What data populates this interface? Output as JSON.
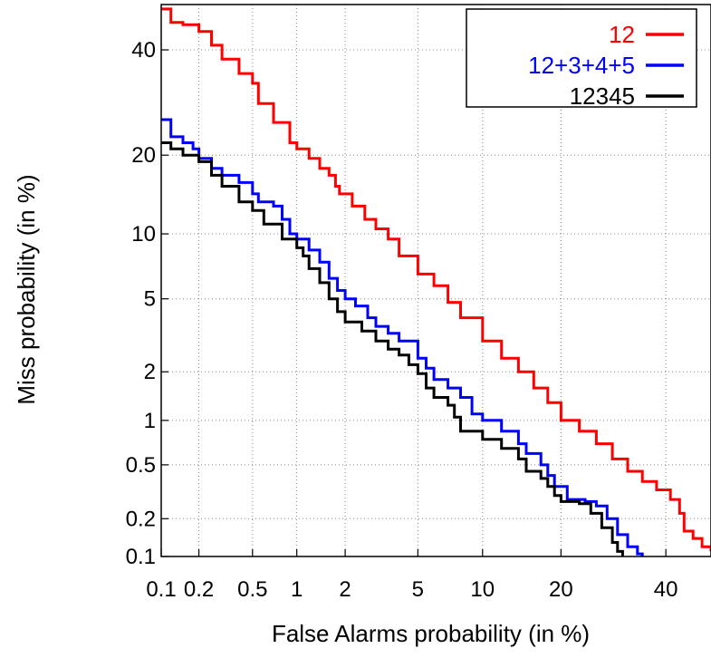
{
  "chart_data": {
    "type": "line",
    "title": "",
    "xlabel": "False Alarms probability (in %)",
    "ylabel": "Miss probability (in %)",
    "x_scale": "probit",
    "y_scale": "probit",
    "xlim": [
      0.1,
      50
    ],
    "ylim": [
      0.1,
      50
    ],
    "x_ticks": [
      0.1,
      0.2,
      0.5,
      1,
      2,
      5,
      10,
      20,
      40
    ],
    "x_tick_labels": [
      "0.1",
      "0.2",
      "0.5",
      "1",
      "2",
      "5",
      "10",
      "20",
      "40"
    ],
    "y_ticks": [
      0.1,
      0.2,
      0.5,
      1,
      2,
      5,
      10,
      20,
      40
    ],
    "y_tick_labels": [
      "0.1",
      "0.2",
      "0.5",
      "1",
      "2",
      "5",
      "10",
      "20",
      "40"
    ],
    "grid": true,
    "legend_position": "top-right",
    "series": [
      {
        "name": "12",
        "color": "#ff0000",
        "points": [
          [
            0.1,
            49.0
          ],
          [
            0.12,
            46.0
          ],
          [
            0.15,
            45.5
          ],
          [
            0.2,
            44.0
          ],
          [
            0.25,
            41.0
          ],
          [
            0.3,
            38.0
          ],
          [
            0.4,
            35.0
          ],
          [
            0.5,
            33.0
          ],
          [
            0.55,
            29.0
          ],
          [
            0.7,
            25.5
          ],
          [
            0.9,
            22.0
          ],
          [
            1.0,
            21.0
          ],
          [
            1.2,
            19.5
          ],
          [
            1.4,
            18.0
          ],
          [
            1.6,
            17.0
          ],
          [
            1.75,
            15.5
          ],
          [
            1.85,
            14.5
          ],
          [
            2.2,
            13.0
          ],
          [
            2.6,
            11.5
          ],
          [
            3.0,
            10.5
          ],
          [
            3.5,
            9.5
          ],
          [
            4.0,
            8.0
          ],
          [
            5.0,
            6.6
          ],
          [
            6.0,
            5.8
          ],
          [
            7.0,
            4.8
          ],
          [
            8.0,
            4.0
          ],
          [
            10.0,
            3.0
          ],
          [
            12.0,
            2.4
          ],
          [
            14.0,
            2.0
          ],
          [
            16.0,
            1.6
          ],
          [
            18.0,
            1.3
          ],
          [
            20.0,
            1.0
          ],
          [
            23.0,
            0.85
          ],
          [
            26.0,
            0.7
          ],
          [
            29.0,
            0.55
          ],
          [
            32.0,
            0.45
          ],
          [
            35.0,
            0.38
          ],
          [
            38.0,
            0.33
          ],
          [
            41.0,
            0.28
          ],
          [
            43.0,
            0.22
          ],
          [
            44.0,
            0.16
          ],
          [
            46.0,
            0.14
          ],
          [
            48.0,
            0.12
          ],
          [
            50.0,
            0.11
          ]
        ]
      },
      {
        "name": "12+3+4+5",
        "color": "#0000ff",
        "points": [
          [
            0.1,
            26.0
          ],
          [
            0.12,
            23.0
          ],
          [
            0.15,
            22.0
          ],
          [
            0.18,
            21.0
          ],
          [
            0.2,
            19.5
          ],
          [
            0.25,
            18.0
          ],
          [
            0.3,
            17.0
          ],
          [
            0.4,
            16.0
          ],
          [
            0.5,
            14.5
          ],
          [
            0.55,
            13.5
          ],
          [
            0.7,
            13.0
          ],
          [
            0.8,
            11.5
          ],
          [
            0.9,
            10.0
          ],
          [
            1.0,
            9.5
          ],
          [
            1.2,
            8.5
          ],
          [
            1.4,
            7.5
          ],
          [
            1.6,
            6.3
          ],
          [
            1.8,
            5.5
          ],
          [
            2.0,
            5.0
          ],
          [
            2.3,
            4.6
          ],
          [
            2.7,
            4.0
          ],
          [
            3.0,
            3.6
          ],
          [
            3.5,
            3.3
          ],
          [
            4.0,
            3.0
          ],
          [
            5.0,
            2.4
          ],
          [
            5.5,
            2.1
          ],
          [
            6.0,
            1.8
          ],
          [
            7.0,
            1.6
          ],
          [
            8.0,
            1.4
          ],
          [
            9.0,
            1.1
          ],
          [
            10.0,
            1.0
          ],
          [
            12.0,
            0.85
          ],
          [
            14.0,
            0.7
          ],
          [
            15.0,
            0.6
          ],
          [
            17.0,
            0.5
          ],
          [
            18.0,
            0.42
          ],
          [
            19.0,
            0.35
          ],
          [
            21.0,
            0.28
          ],
          [
            24.0,
            0.27
          ],
          [
            26.0,
            0.25
          ],
          [
            28.0,
            0.2
          ],
          [
            30.0,
            0.15
          ],
          [
            32.0,
            0.12
          ],
          [
            34.0,
            0.105
          ],
          [
            35.0,
            0.1
          ]
        ]
      },
      {
        "name": "12345",
        "color": "#000000",
        "points": [
          [
            0.1,
            22.0
          ],
          [
            0.12,
            21.0
          ],
          [
            0.15,
            20.0
          ],
          [
            0.2,
            19.0
          ],
          [
            0.25,
            17.0
          ],
          [
            0.3,
            15.5
          ],
          [
            0.4,
            13.5
          ],
          [
            0.5,
            12.5
          ],
          [
            0.6,
            11.0
          ],
          [
            0.8,
            9.5
          ],
          [
            1.0,
            8.7
          ],
          [
            1.1,
            8.0
          ],
          [
            1.2,
            7.0
          ],
          [
            1.4,
            6.0
          ],
          [
            1.6,
            5.0
          ],
          [
            1.8,
            4.3
          ],
          [
            2.0,
            3.8
          ],
          [
            2.5,
            3.4
          ],
          [
            3.0,
            3.0
          ],
          [
            3.5,
            2.7
          ],
          [
            4.0,
            2.5
          ],
          [
            4.5,
            2.2
          ],
          [
            5.0,
            1.95
          ],
          [
            5.5,
            1.6
          ],
          [
            6.0,
            1.4
          ],
          [
            7.0,
            1.25
          ],
          [
            7.5,
            1.05
          ],
          [
            8.0,
            0.85
          ],
          [
            10.0,
            0.75
          ],
          [
            12.0,
            0.65
          ],
          [
            14.0,
            0.55
          ],
          [
            15.0,
            0.45
          ],
          [
            17.0,
            0.4
          ],
          [
            18.0,
            0.35
          ],
          [
            19.0,
            0.3
          ],
          [
            20.0,
            0.27
          ],
          [
            23.0,
            0.26
          ],
          [
            25.0,
            0.22
          ],
          [
            27.0,
            0.17
          ],
          [
            29.0,
            0.13
          ],
          [
            30.0,
            0.11
          ],
          [
            31.0,
            0.1
          ]
        ]
      }
    ]
  }
}
